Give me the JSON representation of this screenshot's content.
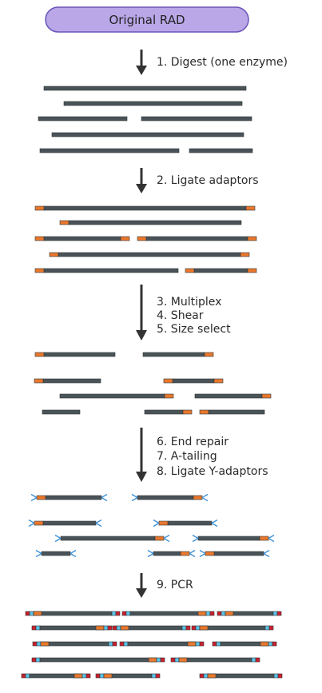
{
  "title": "Original RAD",
  "steps": [
    {
      "lines": [
        "1. Digest (one enzyme)"
      ]
    },
    {
      "lines": [
        "2. Ligate adaptors"
      ]
    },
    {
      "lines": [
        "3. Multiplex",
        "4. Shear",
        "5. Size select"
      ]
    },
    {
      "lines": [
        "6. End repair",
        "7. A-tailing",
        "8. Ligate Y-adaptors"
      ]
    },
    {
      "lines": [
        "9. PCR"
      ]
    }
  ],
  "colors": {
    "title_fill": "#b9a7e8",
    "title_stroke": "#6a54b5",
    "dna": "#4a5358",
    "adaptor": "#e9782d",
    "y_adaptor": "#3a8fd6",
    "pcr_red": "#cc1f2e",
    "pcr_cyan": "#5cc3e6",
    "arrow": "#333333"
  }
}
